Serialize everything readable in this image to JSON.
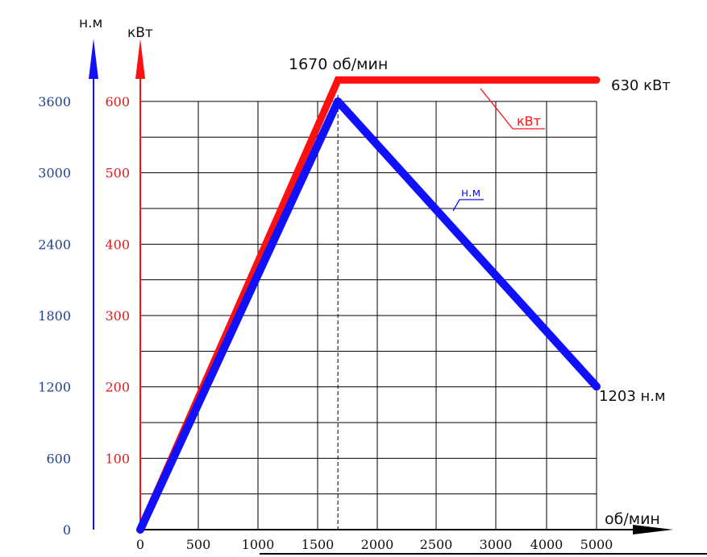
{
  "chart_data": {
    "type": "line",
    "x_axis": {
      "label": "об/мин",
      "ticks": [
        0,
        500,
        1000,
        1500,
        2000,
        2500,
        3000,
        4000,
        5000
      ],
      "color": "#111111"
    },
    "y_axis_torque": {
      "label": "н.м",
      "ticks": [
        0,
        600,
        1200,
        1800,
        2400,
        3000,
        3600
      ],
      "color": "#1f3f9a"
    },
    "y_axis_power": {
      "label": "кВт",
      "ticks": [
        100,
        200,
        300,
        400,
        500,
        600
      ],
      "color": "#d42020"
    },
    "grid": true,
    "series": [
      {
        "name": "кВт",
        "color": "#ff1010",
        "points": [
          {
            "x": 0,
            "y": 0
          },
          {
            "x": 1670,
            "y": 630
          },
          {
            "x": 5000,
            "y": 630
          }
        ]
      },
      {
        "name": "н.м",
        "color": "#1010ff",
        "points": [
          {
            "x": 0,
            "y": 0
          },
          {
            "x": 1670,
            "y": 3600
          },
          {
            "x": 5000,
            "y": 1203
          }
        ]
      }
    ],
    "annotations": {
      "rpm": "1670 об/мин",
      "power_end": "630 кВт",
      "torque_end": "1203 н.м"
    }
  }
}
